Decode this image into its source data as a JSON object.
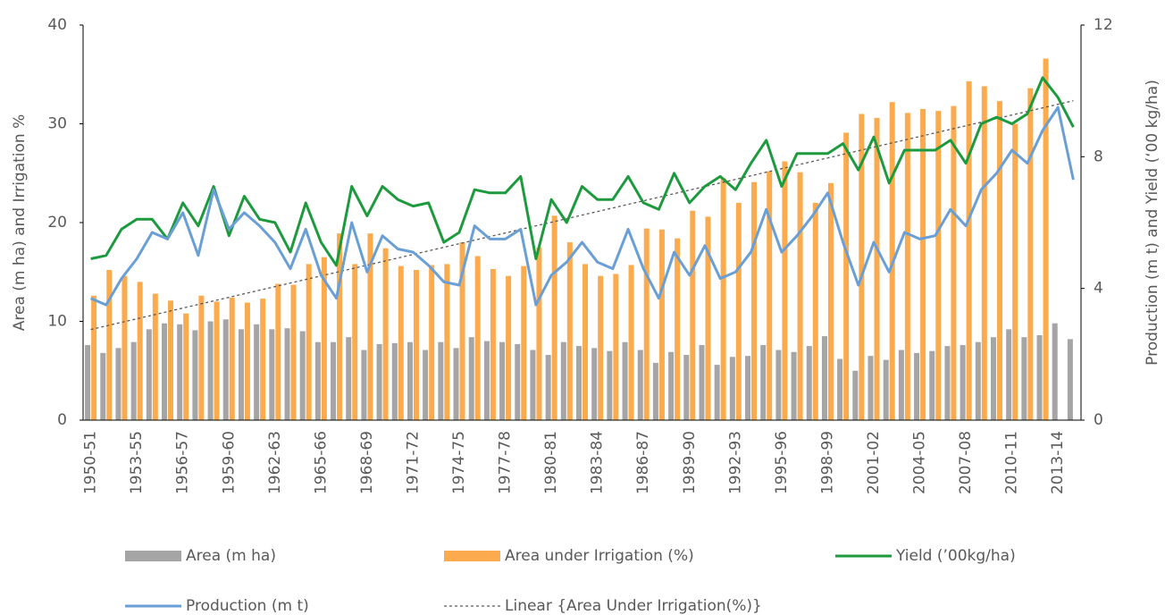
{
  "chart_data": {
    "type": "combo",
    "ylabel": "Area (m ha) and Irrigation %",
    "y2label": "Production (m t) and Yield (‘00 kg/ha)",
    "ylim": [
      0,
      40
    ],
    "yticks": [
      0,
      10,
      20,
      30,
      40
    ],
    "y2lim": [
      0,
      12
    ],
    "y2ticks": [
      0,
      4,
      8,
      12
    ],
    "categories": [
      "1950-51",
      null,
      null,
      "1953-55",
      null,
      null,
      "1956-57",
      null,
      null,
      "1959-60",
      null,
      null,
      "1962-63",
      null,
      null,
      "1965-66",
      null,
      null,
      "1968-69",
      null,
      null,
      "1971-72",
      null,
      null,
      "1974-75",
      null,
      null,
      "1977-78",
      null,
      null,
      "1980-81",
      null,
      null,
      "1983-84",
      null,
      null,
      "1986-87",
      null,
      null,
      "1989-90",
      null,
      null,
      "1992-93",
      null,
      null,
      "1995-96",
      null,
      null,
      "1998-99",
      null,
      null,
      "2001-02",
      null,
      null,
      "2004-05",
      null,
      null,
      "2007-08",
      null,
      null,
      "2010-11",
      null,
      null,
      "2013-14",
      null
    ],
    "series": [
      {
        "name": "Area (m ha)",
        "type": "bar",
        "color": "#a5a5a5",
        "values": [
          7.6,
          6.8,
          7.3,
          7.9,
          9.2,
          9.8,
          9.7,
          9.1,
          10.0,
          10.2,
          9.2,
          9.7,
          9.2,
          9.3,
          9.0,
          7.9,
          7.9,
          8.4,
          7.1,
          7.7,
          7.8,
          7.9,
          7.1,
          7.9,
          7.3,
          8.4,
          8.0,
          7.9,
          7.7,
          7.1,
          6.6,
          7.9,
          7.5,
          7.3,
          7.0,
          7.9,
          7.1,
          5.8,
          6.9,
          6.6,
          7.6,
          5.6,
          6.4,
          6.5,
          7.6,
          7.1,
          6.9,
          7.5,
          8.5,
          6.2,
          5.0,
          6.5,
          6.1,
          7.1,
          6.8,
          7.0,
          7.5,
          7.6,
          7.9,
          8.4,
          9.2,
          8.4,
          8.6,
          9.8,
          8.2
        ]
      },
      {
        "name": "Area under Irrigation (%)",
        "type": "bar",
        "color": "#fbab4d",
        "values": [
          12.6,
          15.2,
          14.6,
          14.0,
          12.8,
          12.1,
          10.8,
          12.6,
          12.0,
          12.4,
          11.9,
          12.3,
          13.8,
          13.7,
          15.8,
          16.5,
          18.9,
          15.8,
          18.9,
          17.4,
          15.6,
          15.2,
          15.7,
          15.8,
          18.0,
          16.6,
          15.3,
          14.6,
          15.6,
          17.5,
          20.7,
          18.0,
          15.8,
          14.6,
          14.8,
          15.7,
          19.4,
          19.3,
          18.4,
          21.2,
          20.6,
          24.5,
          22.0,
          24.1,
          25.2,
          26.2,
          25.1,
          22.0,
          24.0,
          29.1,
          31.0,
          30.6,
          32.2,
          31.1,
          31.5,
          31.3,
          31.8,
          34.3,
          33.8,
          32.3,
          30.0,
          33.6,
          36.6,
          null,
          null
        ]
      },
      {
        "name": "Yield (’00kg/ha)",
        "type": "line",
        "axis": "y2",
        "color": "#1e9a3e",
        "values": [
          4.9,
          5.0,
          5.8,
          6.1,
          6.1,
          5.5,
          6.6,
          5.9,
          7.1,
          5.6,
          6.8,
          6.1,
          6.0,
          5.1,
          6.6,
          5.4,
          4.7,
          7.1,
          6.2,
          7.1,
          6.7,
          6.5,
          6.6,
          5.4,
          5.7,
          7.0,
          6.9,
          6.9,
          7.4,
          4.9,
          6.7,
          6.0,
          7.1,
          6.7,
          6.7,
          7.4,
          6.6,
          6.4,
          7.5,
          6.6,
          7.1,
          7.4,
          7.0,
          7.8,
          8.5,
          7.1,
          8.1,
          8.1,
          8.1,
          8.4,
          7.6,
          8.6,
          7.2,
          8.2,
          8.2,
          8.2,
          8.5,
          7.8,
          9.0,
          9.2,
          9.0,
          9.3,
          10.4,
          9.8,
          8.9
        ]
      },
      {
        "name": "Production (m t)",
        "type": "line",
        "axis": "y2",
        "color": "#6a9fd6",
        "values": [
          3.7,
          3.5,
          4.3,
          4.9,
          5.7,
          5.5,
          6.3,
          5.0,
          7.0,
          5.8,
          6.3,
          5.9,
          5.4,
          4.6,
          5.8,
          4.4,
          3.7,
          6.0,
          4.5,
          5.6,
          5.2,
          5.1,
          4.7,
          4.2,
          4.1,
          5.9,
          5.5,
          5.5,
          5.8,
          3.5,
          4.4,
          4.8,
          5.4,
          4.8,
          4.6,
          5.8,
          4.6,
          3.7,
          5.1,
          4.4,
          5.3,
          4.3,
          4.5,
          5.1,
          6.4,
          5.1,
          5.6,
          6.2,
          6.9,
          5.4,
          4.1,
          5.4,
          4.5,
          5.7,
          5.5,
          5.6,
          6.4,
          5.9,
          7.0,
          7.5,
          8.2,
          7.8,
          8.8,
          9.5,
          7.3
        ]
      }
    ],
    "trendline": {
      "name": "Linear {Area Under Irrigation(%)}",
      "of_series": 1,
      "color": "#595959"
    }
  }
}
